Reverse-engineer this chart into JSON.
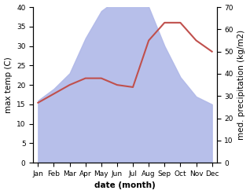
{
  "months": [
    "Jan",
    "Feb",
    "Mar",
    "Apr",
    "May",
    "Jun",
    "Jul",
    "Aug",
    "Sep",
    "Oct",
    "Nov",
    "Dec"
  ],
  "precipitation": [
    16,
    19,
    23,
    32,
    39,
    42,
    43,
    40,
    30,
    22,
    17,
    15
  ],
  "temperature": [
    27,
    31,
    35,
    38,
    38,
    35,
    34,
    55,
    63,
    63,
    55,
    50
  ],
  "precip_color": "#b0b8e8",
  "temp_color": "#c0504d",
  "left_ylim": [
    0,
    40
  ],
  "right_ylim": [
    0,
    70
  ],
  "xlabel": "date (month)",
  "ylabel_left": "max temp (C)",
  "ylabel_right": "med. precipitation (kg/m2)",
  "bg_color": "#ffffff",
  "label_fontsize": 7.5,
  "tick_fontsize": 6.5
}
